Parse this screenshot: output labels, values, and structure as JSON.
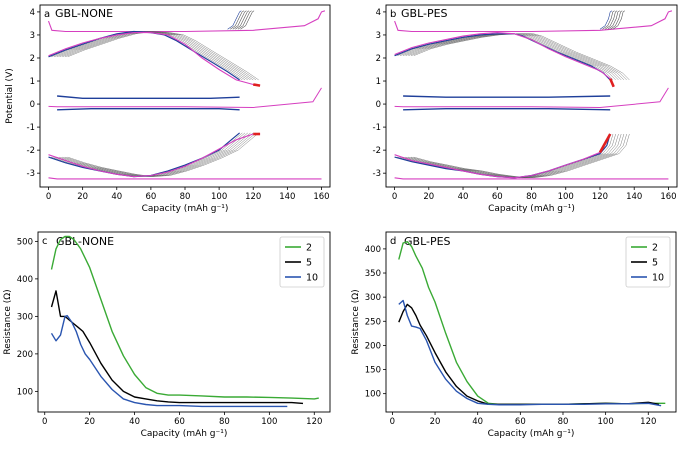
{
  "figure": {
    "shared_potential_ylabel": "Potential (V)",
    "shared_capacity_xlabel": "Capacity (mAh g⁻¹)"
  },
  "chart_data": [
    {
      "id": "a",
      "type": "line",
      "letter": "a",
      "title": "GBL-NONE",
      "xlabel": "Capacity (mAh g⁻¹)",
      "ylabel": "Potential (V)",
      "xlim": [
        -5,
        165
      ],
      "ylim": [
        -3.6,
        4.3
      ],
      "xticks": [
        0,
        20,
        40,
        60,
        80,
        100,
        120,
        140,
        160
      ],
      "yticks": [
        -3,
        -2,
        -1,
        0,
        1,
        2,
        3,
        4
      ],
      "colors": {
        "first": "#1f3f9a",
        "last": "#d63fc0",
        "intermediate": "#555555",
        "end_marker": "#e02020"
      },
      "upper_pair": {
        "charge": [
          [
            0,
            2.05
          ],
          [
            10,
            2.35
          ],
          [
            20,
            2.6
          ],
          [
            30,
            2.85
          ],
          [
            40,
            3.05
          ],
          [
            50,
            3.15
          ],
          [
            60,
            3.1
          ],
          [
            68,
            3.0
          ],
          [
            75,
            2.75
          ],
          [
            85,
            2.3
          ],
          [
            95,
            1.85
          ],
          [
            105,
            1.4
          ],
          [
            112,
            1.05
          ]
        ],
        "discharge": [
          [
            5,
            0.35
          ],
          [
            20,
            0.25
          ],
          [
            40,
            0.25
          ],
          [
            60,
            0.25
          ],
          [
            75,
            0.25
          ],
          [
            95,
            0.25
          ],
          [
            112,
            0.3
          ]
        ],
        "last_charge_x": [
          0,
          10,
          20,
          30,
          40,
          50,
          60,
          70,
          80,
          90,
          100,
          110,
          120,
          124
        ],
        "last_charge_y": [
          2.1,
          2.4,
          2.65,
          2.85,
          3.0,
          3.1,
          3.1,
          3.0,
          2.6,
          2.0,
          1.5,
          1.05,
          0.85,
          0.8
        ]
      },
      "lower_pair": {
        "charge": [
          [
            0,
            -2.3
          ],
          [
            10,
            -2.55
          ],
          [
            20,
            -2.75
          ],
          [
            30,
            -2.9
          ],
          [
            40,
            -3.05
          ],
          [
            50,
            -3.15
          ],
          [
            60,
            -3.1
          ],
          [
            70,
            -2.9
          ],
          [
            80,
            -2.65
          ],
          [
            90,
            -2.35
          ],
          [
            100,
            -2.0
          ],
          [
            108,
            -1.5
          ],
          [
            112,
            -1.25
          ]
        ],
        "discharge": [
          [
            5,
            -0.25
          ],
          [
            25,
            -0.2
          ],
          [
            50,
            -0.2
          ],
          [
            75,
            -0.2
          ],
          [
            100,
            -0.2
          ],
          [
            112,
            -0.25
          ]
        ],
        "last_charge_x": [
          0,
          10,
          20,
          30,
          40,
          50,
          60,
          70,
          80,
          90,
          100,
          110,
          120,
          124
        ],
        "last_charge_y": [
          -2.2,
          -2.45,
          -2.7,
          -2.9,
          -3.05,
          -3.15,
          -3.1,
          -2.95,
          -2.7,
          -2.35,
          -1.95,
          -1.55,
          -1.3,
          -1.3
        ]
      },
      "formation_upper_x": [
        0,
        2,
        10,
        40,
        80,
        120,
        150,
        158,
        160,
        162
      ],
      "formation_upper_y": [
        3.6,
        3.2,
        3.15,
        3.15,
        3.15,
        3.2,
        3.4,
        3.7,
        4.0,
        4.05
      ],
      "formation_lower_x": [
        0,
        5,
        40,
        80,
        120,
        155,
        158,
        160
      ],
      "formation_lower_y": [
        -3.2,
        -3.25,
        -3.25,
        -3.25,
        -3.25,
        -3.25,
        -3.25,
        -3.25
      ],
      "top_charge_x": [
        105,
        108,
        110,
        112,
        113
      ],
      "top_charge_y": [
        3.25,
        3.4,
        3.7,
        4.0,
        4.05
      ],
      "mid_formation_x": [
        0,
        5,
        40,
        80,
        120,
        155,
        160
      ],
      "mid_formation_y": [
        -0.1,
        -0.12,
        -0.12,
        -0.12,
        -0.15,
        0.1,
        0.7
      ]
    },
    {
      "id": "b",
      "type": "line",
      "letter": "b",
      "title": "GBL-PES",
      "xlabel": "Capacity (mAh g⁻¹)",
      "ylabel": "",
      "xlim": [
        -5,
        165
      ],
      "ylim": [
        -3.6,
        4.3
      ],
      "xticks": [
        0,
        20,
        40,
        60,
        80,
        100,
        120,
        140,
        160
      ],
      "yticks": [
        -3,
        -2,
        -1,
        0,
        1,
        2,
        3,
        4
      ],
      "colors": {
        "first": "#1f3f9a",
        "last": "#d63fc0",
        "intermediate": "#555555",
        "end_marker": "#e02020"
      },
      "upper_pair": {
        "charge": [
          [
            0,
            2.1
          ],
          [
            10,
            2.4
          ],
          [
            20,
            2.6
          ],
          [
            30,
            2.75
          ],
          [
            40,
            2.9
          ],
          [
            50,
            3.0
          ],
          [
            60,
            3.05
          ],
          [
            70,
            3.05
          ],
          [
            75,
            2.95
          ],
          [
            85,
            2.6
          ],
          [
            95,
            2.25
          ],
          [
            105,
            1.95
          ],
          [
            115,
            1.65
          ],
          [
            122,
            1.35
          ],
          [
            126,
            1.05
          ]
        ],
        "discharge": [
          [
            5,
            0.35
          ],
          [
            30,
            0.3
          ],
          [
            60,
            0.3
          ],
          [
            90,
            0.3
          ],
          [
            126,
            0.35
          ]
        ],
        "last_charge_x": [
          0,
          10,
          20,
          30,
          40,
          50,
          60,
          70,
          80,
          90,
          100,
          110,
          120,
          126,
          128
        ],
        "last_charge_y": [
          2.15,
          2.45,
          2.65,
          2.8,
          2.95,
          3.05,
          3.1,
          3.05,
          2.8,
          2.4,
          2.05,
          1.75,
          1.45,
          1.1,
          0.75
        ]
      },
      "lower_pair": {
        "charge": [
          [
            0,
            -2.3
          ],
          [
            10,
            -2.5
          ],
          [
            20,
            -2.65
          ],
          [
            30,
            -2.8
          ],
          [
            40,
            -2.9
          ],
          [
            50,
            -3.05
          ],
          [
            60,
            -3.15
          ],
          [
            70,
            -3.2
          ],
          [
            80,
            -3.1
          ],
          [
            90,
            -2.9
          ],
          [
            100,
            -2.65
          ],
          [
            110,
            -2.4
          ],
          [
            120,
            -2.15
          ],
          [
            124,
            -1.8
          ],
          [
            126,
            -1.3
          ]
        ],
        "discharge": [
          [
            5,
            -0.25
          ],
          [
            30,
            -0.2
          ],
          [
            60,
            -0.2
          ],
          [
            90,
            -0.2
          ],
          [
            126,
            -0.25
          ]
        ],
        "last_charge_x": [
          0,
          10,
          20,
          30,
          40,
          50,
          60,
          70,
          80,
          90,
          100,
          110,
          120,
          126
        ],
        "last_charge_y": [
          -2.2,
          -2.45,
          -2.6,
          -2.75,
          -2.9,
          -3.05,
          -3.15,
          -3.2,
          -3.1,
          -2.9,
          -2.65,
          -2.4,
          -2.1,
          -1.3
        ]
      },
      "formation_upper_x": [
        0,
        2,
        10,
        40,
        80,
        120,
        150,
        158,
        160,
        162
      ],
      "formation_upper_y": [
        3.6,
        3.2,
        3.15,
        3.15,
        3.15,
        3.2,
        3.4,
        3.7,
        4.0,
        4.05
      ],
      "formation_lower_x": [
        0,
        5,
        40,
        80,
        120,
        155,
        158,
        160
      ],
      "formation_lower_y": [
        -3.2,
        -3.25,
        -3.25,
        -3.25,
        -3.25,
        -3.25,
        -3.25,
        -3.25
      ],
      "top_charge_x": [
        120,
        123,
        125,
        126,
        127
      ],
      "top_charge_y": [
        3.25,
        3.4,
        3.7,
        4.0,
        4.05
      ],
      "mid_formation_x": [
        0,
        5,
        40,
        80,
        120,
        155,
        160
      ],
      "mid_formation_y": [
        -0.1,
        -0.12,
        -0.12,
        -0.12,
        -0.15,
        0.1,
        0.7
      ]
    },
    {
      "id": "c",
      "type": "line",
      "letter": "c",
      "title": "GBL-NONE",
      "xlabel": "Capacity (mAh g⁻¹)",
      "ylabel": "Resistance (Ω)",
      "xlim": [
        -3,
        127
      ],
      "ylim": [
        45,
        525
      ],
      "xticks": [
        0,
        20,
        40,
        60,
        80,
        100,
        120
      ],
      "yticks": [
        100,
        200,
        300,
        400,
        500
      ],
      "legend": "top-right",
      "series": [
        {
          "name": "2",
          "color": "#3aaa35",
          "x": [
            3,
            5,
            7,
            9,
            11,
            13,
            16,
            20,
            25,
            30,
            35,
            40,
            45,
            50,
            55,
            60,
            70,
            80,
            90,
            100,
            110,
            120,
            122
          ],
          "y": [
            425,
            480,
            505,
            513,
            513,
            505,
            480,
            430,
            345,
            260,
            195,
            145,
            110,
            95,
            90,
            90,
            88,
            85,
            85,
            84,
            82,
            80,
            82
          ]
        },
        {
          "name": "5",
          "color": "#000000",
          "x": [
            3,
            5,
            7,
            9,
            11,
            13,
            15,
            17,
            20,
            25,
            30,
            35,
            40,
            45,
            50,
            55,
            60,
            70,
            80,
            90,
            100,
            110,
            115
          ],
          "y": [
            325,
            368,
            300,
            300,
            290,
            280,
            270,
            260,
            230,
            175,
            130,
            100,
            85,
            80,
            75,
            72,
            70,
            70,
            70,
            70,
            70,
            70,
            68
          ]
        },
        {
          "name": "10",
          "color": "#2a55b0",
          "x": [
            3,
            5,
            7,
            9,
            10,
            12,
            14,
            16,
            18,
            20,
            25,
            30,
            35,
            40,
            45,
            50,
            60,
            70,
            80,
            90,
            100,
            108
          ],
          "y": [
            255,
            235,
            250,
            300,
            302,
            285,
            260,
            225,
            200,
            185,
            140,
            105,
            80,
            70,
            65,
            62,
            62,
            60,
            60,
            60,
            60,
            60
          ]
        }
      ]
    },
    {
      "id": "d",
      "type": "line",
      "letter": "d",
      "title": "GBL-PES",
      "xlabel": "Capacity (mAh g⁻¹)",
      "ylabel": "Resistance (Ω)",
      "xlim": [
        -3,
        133
      ],
      "ylim": [
        62,
        435
      ],
      "xticks": [
        0,
        20,
        40,
        60,
        80,
        100,
        120
      ],
      "yticks": [
        100,
        150,
        200,
        250,
        300,
        350,
        400
      ],
      "legend": "top-right",
      "series": [
        {
          "name": "2",
          "color": "#3aaa35",
          "x": [
            3,
            5,
            7,
            9,
            11,
            14,
            17,
            20,
            25,
            30,
            35,
            40,
            45,
            50,
            60,
            70,
            80,
            90,
            100,
            110,
            120,
            128
          ],
          "y": [
            378,
            412,
            415,
            405,
            385,
            360,
            320,
            290,
            225,
            165,
            125,
            95,
            80,
            78,
            78,
            78,
            78,
            79,
            80,
            79,
            80,
            80
          ]
        },
        {
          "name": "5",
          "color": "#000000",
          "x": [
            3,
            5,
            7,
            9,
            11,
            13,
            16,
            20,
            25,
            30,
            35,
            40,
            45,
            50,
            60,
            70,
            80,
            90,
            100,
            110,
            120,
            125
          ],
          "y": [
            248,
            270,
            285,
            278,
            262,
            242,
            220,
            185,
            145,
            115,
            95,
            85,
            78,
            78,
            78,
            78,
            78,
            79,
            80,
            79,
            82,
            78
          ]
        },
        {
          "name": "10",
          "color": "#2a55b0",
          "x": [
            3,
            5,
            7,
            9,
            11,
            13,
            16,
            20,
            25,
            30,
            35,
            40,
            45,
            50,
            60,
            70,
            80,
            90,
            100,
            110,
            120,
            126
          ],
          "y": [
            285,
            293,
            262,
            240,
            238,
            235,
            210,
            165,
            130,
            105,
            90,
            80,
            78,
            77,
            77,
            78,
            78,
            78,
            79,
            79,
            80,
            75
          ]
        }
      ]
    }
  ]
}
